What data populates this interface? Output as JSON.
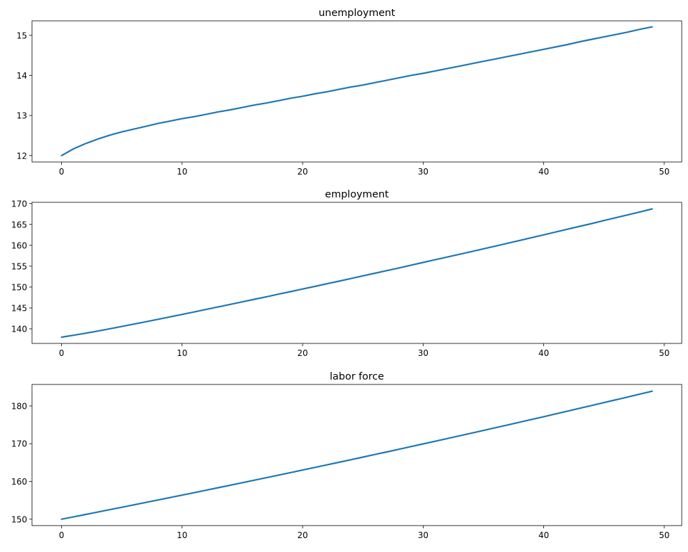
{
  "chart_data": [
    {
      "type": "line",
      "title": "unemployment",
      "xlabel": "",
      "ylabel": "",
      "xlim": [
        -2.45,
        51.45
      ],
      "ylim": [
        11.84,
        15.36
      ],
      "xticks": [
        0,
        10,
        20,
        30,
        40,
        50
      ],
      "yticks": [
        12,
        13,
        14,
        15
      ],
      "grid": false,
      "color": "#1f77b4",
      "x_start": 0,
      "values": [
        12.0,
        12.17,
        12.3,
        12.41,
        12.51,
        12.59,
        12.66,
        12.73,
        12.8,
        12.86,
        12.92,
        12.97,
        13.03,
        13.09,
        13.14,
        13.2,
        13.26,
        13.31,
        13.37,
        13.43,
        13.48,
        13.54,
        13.59,
        13.65,
        13.71,
        13.76,
        13.82,
        13.88,
        13.94,
        14.0,
        14.05,
        14.11,
        14.17,
        14.23,
        14.29,
        14.35,
        14.41,
        14.47,
        14.53,
        14.59,
        14.65,
        14.71,
        14.77,
        14.84,
        14.9,
        14.96,
        15.02,
        15.08,
        15.15,
        15.21
      ]
    },
    {
      "type": "line",
      "title": "employment",
      "xlabel": "",
      "ylabel": "",
      "xlim": [
        -2.45,
        51.45
      ],
      "ylim": [
        136.5,
        170.3
      ],
      "xticks": [
        0,
        10,
        20,
        30,
        40,
        50
      ],
      "yticks": [
        140,
        145,
        150,
        155,
        160,
        165,
        170
      ],
      "grid": false,
      "color": "#1f77b4",
      "x_start": 0,
      "values": [
        138.0,
        138.46,
        138.95,
        139.47,
        140.01,
        140.56,
        141.13,
        141.7,
        142.28,
        142.86,
        143.45,
        144.05,
        144.65,
        145.25,
        145.86,
        146.46,
        147.07,
        147.68,
        148.3,
        148.91,
        149.54,
        150.16,
        150.79,
        151.41,
        152.04,
        152.68,
        153.32,
        153.95,
        154.59,
        155.24,
        155.89,
        156.54,
        157.19,
        157.85,
        158.5,
        159.16,
        159.83,
        160.49,
        161.16,
        161.84,
        162.51,
        163.19,
        163.87,
        164.55,
        165.23,
        165.93,
        166.62,
        167.32,
        168.01,
        168.71
      ]
    },
    {
      "type": "line",
      "title": "labor force",
      "xlabel": "",
      "ylabel": "",
      "xlim": [
        -2.45,
        51.45
      ],
      "ylim": [
        148.3,
        185.7
      ],
      "xticks": [
        0,
        10,
        20,
        30,
        40,
        50
      ],
      "yticks": [
        150,
        160,
        170,
        180
      ],
      "grid": false,
      "color": "#1f77b4",
      "x_start": 0,
      "values": [
        150.0,
        150.63,
        151.25,
        151.88,
        152.52,
        153.15,
        153.79,
        154.43,
        155.08,
        155.72,
        156.37,
        157.02,
        157.68,
        158.34,
        159.0,
        159.66,
        160.33,
        160.99,
        161.67,
        162.34,
        163.02,
        163.7,
        164.38,
        165.06,
        165.75,
        166.44,
        167.14,
        167.83,
        168.53,
        169.24,
        169.94,
        170.65,
        171.36,
        172.08,
        172.79,
        173.51,
        174.24,
        174.96,
        175.69,
        176.43,
        177.16,
        177.9,
        178.64,
        179.39,
        180.13,
        180.89,
        181.64,
        182.4,
        183.16,
        183.92
      ]
    }
  ]
}
